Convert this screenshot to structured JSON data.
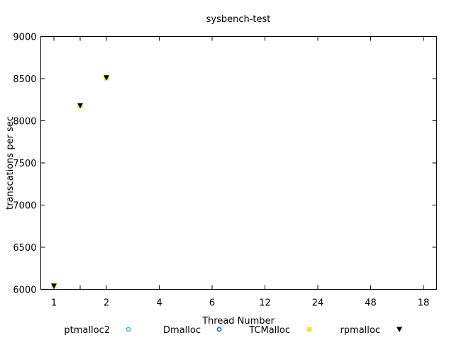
{
  "chart_data": {
    "type": "scatter",
    "title": "sysbench-test",
    "xlabel": "Thread Number",
    "ylabel": "transcations per sec",
    "categories": [
      "1",
      "",
      "2",
      "4",
      "6",
      "12",
      "24",
      "48",
      "18"
    ],
    "ylim": [
      6000,
      9000
    ],
    "yticks": [
      6000,
      6500,
      7000,
      7500,
      8000,
      8500,
      9000
    ],
    "grid": false,
    "legend": "bottom",
    "series": [
      {
        "name": "ptmalloc2",
        "marker": "circle-open",
        "color": "#56b4e9",
        "values": [
          6040,
          8180,
          8510,
          null,
          null,
          null,
          null,
          null,
          null
        ]
      },
      {
        "name": "Dmalloc",
        "marker": "circle-open",
        "color": "#0072b2",
        "values": [
          6040,
          8180,
          8510,
          null,
          null,
          null,
          null,
          null,
          null
        ]
      },
      {
        "name": "TCMalloc",
        "marker": "square-filled",
        "color": "#f0e442",
        "values": [
          6040,
          8180,
          8510,
          null,
          null,
          null,
          null,
          null,
          null
        ]
      },
      {
        "name": "rpmalloc",
        "marker": "triangle-down-filled",
        "color": "#000000",
        "values": [
          6040,
          8180,
          8510,
          null,
          null,
          null,
          null,
          null,
          null
        ]
      }
    ]
  }
}
